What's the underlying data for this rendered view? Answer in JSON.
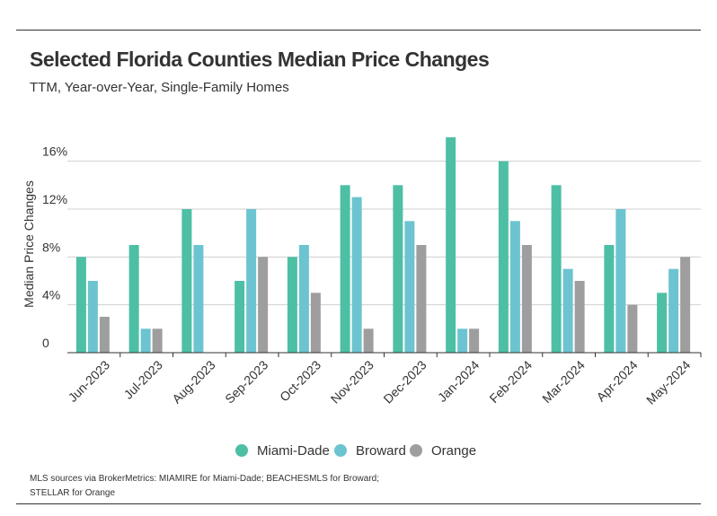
{
  "header": {
    "title": "Selected Florida Counties Median Price Changes",
    "subtitle": "TTM, Year-over-Year, Single-Family Homes"
  },
  "footnote": {
    "line1": "MLS sources via BrokerMetrics: MIAMIRE for Miami-Dade; BEACHESMLS for Broward;",
    "line2": "STELLAR for Orange"
  },
  "colors": {
    "miami_dade": "#4dbfa5",
    "broward": "#6cc4d0",
    "orange": "#9e9e9e",
    "grid": "#cfcfcf",
    "text": "#333333"
  },
  "chart_data": {
    "type": "bar",
    "title": "Selected Florida Counties Median Price Changes",
    "subtitle": "TTM, Year-over-Year, Single-Family Homes",
    "xlabel": "",
    "ylabel": "Median Price Changes",
    "ylim": [
      0,
      18
    ],
    "grid": true,
    "legend_position": "bottom-center",
    "y_ticks": [
      {
        "value": 0,
        "label": "0"
      },
      {
        "value": 4,
        "label": "4%"
      },
      {
        "value": 8,
        "label": "8%"
      },
      {
        "value": 12,
        "label": "12%"
      },
      {
        "value": 16,
        "label": "16%"
      }
    ],
    "categories": [
      "Jun-2023",
      "Jul-2023",
      "Aug-2023",
      "Sep-2023",
      "Oct-2023",
      "Nov-2023",
      "Dec-2023",
      "Jan-2024",
      "Feb-2024",
      "Mar-2024",
      "Apr-2024",
      "May-2024"
    ],
    "series": [
      {
        "name": "Miami-Dade",
        "color": "#4dbfa5",
        "values": [
          8,
          9,
          12,
          6,
          8,
          14,
          14,
          18,
          16,
          14,
          9,
          5
        ]
      },
      {
        "name": "Broward",
        "color": "#6cc4d0",
        "values": [
          6,
          2,
          9,
          12,
          9,
          13,
          11,
          2,
          11,
          7,
          12,
          7
        ]
      },
      {
        "name": "Orange",
        "color": "#9e9e9e",
        "values": [
          3,
          2,
          0,
          8,
          5,
          2,
          9,
          2,
          9,
          6,
          4,
          8
        ]
      }
    ]
  }
}
